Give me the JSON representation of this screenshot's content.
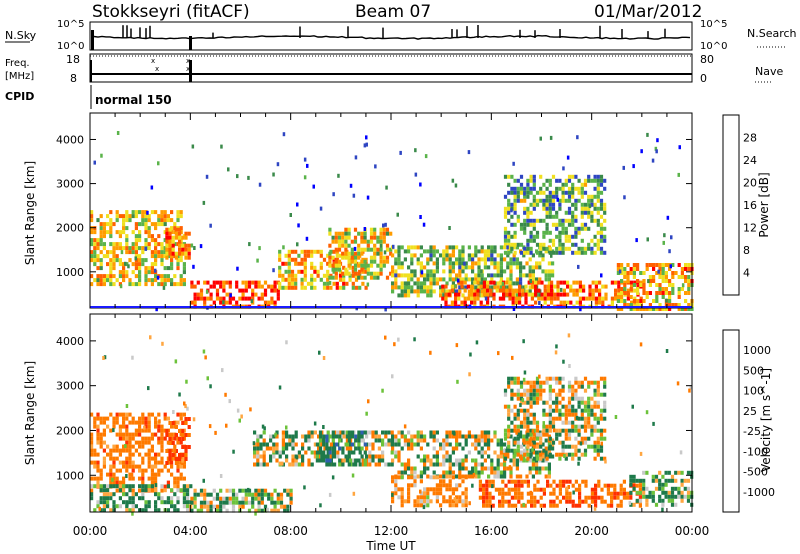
{
  "header": {
    "station": "Stokkseyri (fitACF)",
    "beam": "Beam 07",
    "date": "01/Mar/2012"
  },
  "summary_panels": {
    "nsky_label": "N.Sky",
    "nsky_ticks": [
      "10^5",
      "10^0"
    ],
    "nsearch_label": "N.Search",
    "nsearch_ticks": [
      "10^5",
      "10^0"
    ],
    "freq_label_1": "Freq.",
    "freq_label_2": "[MHz]",
    "freq_ticks": [
      "18",
      "8"
    ],
    "nave_label": "Nave",
    "nave_ticks": [
      "80",
      "0"
    ],
    "cpid_label": "CPID",
    "cpid_value": "normal 150"
  },
  "colors": {
    "power_scale": [
      "#0000ff",
      "#2e45c2",
      "#3a8a4a",
      "#5ab34a",
      "#f0e020",
      "#ff9c00",
      "#ff6000",
      "#ff0000"
    ],
    "velocity_scale": [
      "#1e2ecc",
      "#2f5fb0",
      "#1e7a4a",
      "#6cc23a",
      "#c9c9c9",
      "#ffa640",
      "#ff7a00",
      "#ff3000",
      "#ff0000"
    ]
  },
  "chart_data": [
    {
      "type": "heatmap",
      "name": "power_panel",
      "ylabel": "Slant Range [km]",
      "xlabel": "",
      "xlim": [
        "00:00",
        "00:00"
      ],
      "ylim": [
        180,
        4600
      ],
      "y_ticks": [
        "1000",
        "2000",
        "3000",
        "4000"
      ],
      "x_ticks": [
        "00:00",
        "04:00",
        "08:00",
        "12:00",
        "16:00",
        "20:00",
        "00:00"
      ],
      "colorbar": {
        "label": "Power [dB]",
        "ticks": [
          "28",
          "24",
          "20",
          "16",
          "12",
          "8",
          "4"
        ],
        "range": [
          0,
          30
        ]
      },
      "regions": [
        {
          "t": [
            0,
            3.8
          ],
          "r": [
            700,
            2400
          ],
          "value": 18
        },
        {
          "t": [
            3.0,
            4.0
          ],
          "r": [
            1300,
            2000
          ],
          "value": 22
        },
        {
          "t": [
            4.0,
            7.5
          ],
          "r": [
            200,
            800
          ],
          "value": 26
        },
        {
          "t": [
            7.5,
            11.0
          ],
          "r": [
            600,
            1500
          ],
          "value": 20
        },
        {
          "t": [
            9.5,
            12.0
          ],
          "r": [
            900,
            2000
          ],
          "value": 18
        },
        {
          "t": [
            12.0,
            18.5
          ],
          "r": [
            500,
            1600
          ],
          "value": 14
        },
        {
          "t": [
            14.0,
            22.0
          ],
          "r": [
            200,
            800
          ],
          "value": 24
        },
        {
          "t": [
            16.5,
            20.5
          ],
          "r": [
            1400,
            3200
          ],
          "value": 12
        },
        {
          "t": [
            21.0,
            24.0
          ],
          "r": [
            200,
            1200
          ],
          "value": 20
        }
      ]
    },
    {
      "type": "heatmap",
      "name": "velocity_panel",
      "ylabel": "Slant Range [km]",
      "xlabel": "Time UT",
      "xlim": [
        "00:00",
        "00:00"
      ],
      "ylim": [
        180,
        4600
      ],
      "y_ticks": [
        "1000",
        "2000",
        "3000",
        "4000"
      ],
      "x_ticks": [
        "00:00",
        "04:00",
        "08:00",
        "12:00",
        "16:00",
        "20:00",
        "00:00"
      ],
      "colorbar": {
        "label": "Velocity [m s^-1]",
        "ticks": [
          "1000",
          "500",
          "100",
          "25",
          "-25",
          "-100",
          "-500",
          "-1000"
        ],
        "range": [
          -1000,
          1000
        ]
      },
      "regions": [
        {
          "t": [
            0,
            3.8
          ],
          "r": [
            700,
            2400
          ],
          "value": -300
        },
        {
          "t": [
            3.0,
            4.0
          ],
          "r": [
            1300,
            2300
          ],
          "value": -600
        },
        {
          "t": [
            0,
            4.0
          ],
          "r": [
            200,
            800
          ],
          "value": 150
        },
        {
          "t": [
            4.0,
            8.0
          ],
          "r": [
            200,
            700
          ],
          "value": 60
        },
        {
          "t": [
            6.5,
            12.0
          ],
          "r": [
            1200,
            2000
          ],
          "value": 0
        },
        {
          "t": [
            9.0,
            11.0
          ],
          "r": [
            1200,
            2000
          ],
          "value": 300
        },
        {
          "t": [
            12.0,
            18.5
          ],
          "r": [
            1000,
            2000
          ],
          "value": 0
        },
        {
          "t": [
            12.0,
            15.0
          ],
          "r": [
            300,
            1000
          ],
          "value": -200
        },
        {
          "t": [
            15.5,
            22.0
          ],
          "r": [
            300,
            900
          ],
          "value": -400
        },
        {
          "t": [
            16.5,
            20.5
          ],
          "r": [
            1400,
            3200
          ],
          "value": 0
        },
        {
          "t": [
            21.5,
            24.0
          ],
          "r": [
            300,
            1100
          ],
          "value": 150
        }
      ]
    }
  ]
}
